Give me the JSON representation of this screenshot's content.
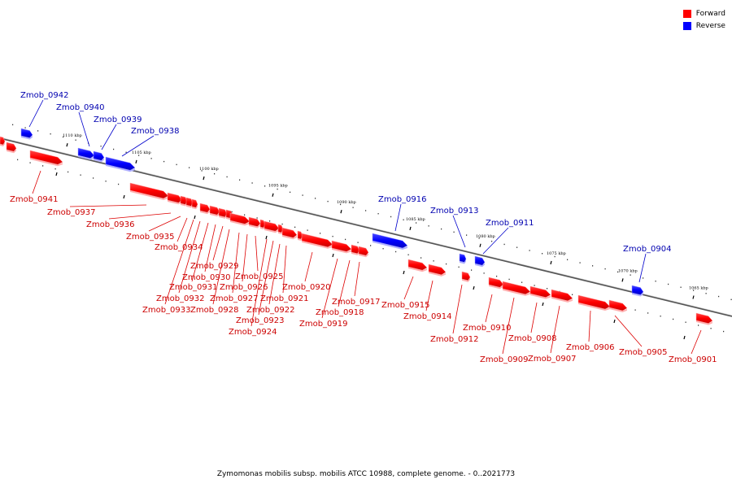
{
  "legend": {
    "forward_label": "Forward",
    "reverse_label": "Reverse",
    "forward_color": "#ff0000",
    "reverse_color": "#0000ff"
  },
  "caption": "Zymomonas mobilis subsp. mobilis ATCC 10988, complete genome. - 0..2021773",
  "genome_track": {
    "units": "kbp",
    "scale_labels": [
      "1110 kbp",
      "1105 kbp",
      "1100 kbp",
      "1095 kbp",
      "1090 kbp",
      "1085 kbp",
      "1080 kbp",
      "1075 kbp",
      "1070 kbp",
      "1065 kbp"
    ]
  },
  "genes": [
    {
      "name": "Zmob_0942",
      "strand": "reverse"
    },
    {
      "name": "Zmob_0941",
      "strand": "forward"
    },
    {
      "name": "Zmob_0940",
      "strand": "reverse"
    },
    {
      "name": "Zmob_0939",
      "strand": "reverse"
    },
    {
      "name": "Zmob_0938",
      "strand": "reverse"
    },
    {
      "name": "Zmob_0937",
      "strand": "forward"
    },
    {
      "name": "Zmob_0936",
      "strand": "forward"
    },
    {
      "name": "Zmob_0935",
      "strand": "forward"
    },
    {
      "name": "Zmob_0934",
      "strand": "forward"
    },
    {
      "name": "Zmob_0933",
      "strand": "forward"
    },
    {
      "name": "Zmob_0932",
      "strand": "forward"
    },
    {
      "name": "Zmob_0931",
      "strand": "forward"
    },
    {
      "name": "Zmob_0930",
      "strand": "forward"
    },
    {
      "name": "Zmob_0929",
      "strand": "forward"
    },
    {
      "name": "Zmob_0928",
      "strand": "forward"
    },
    {
      "name": "Zmob_0927",
      "strand": "forward"
    },
    {
      "name": "Zmob_0926",
      "strand": "forward"
    },
    {
      "name": "Zmob_0925",
      "strand": "forward"
    },
    {
      "name": "Zmob_0924",
      "strand": "forward"
    },
    {
      "name": "Zmob_0923",
      "strand": "forward"
    },
    {
      "name": "Zmob_0922",
      "strand": "forward"
    },
    {
      "name": "Zmob_0921",
      "strand": "forward"
    },
    {
      "name": "Zmob_0920",
      "strand": "forward"
    },
    {
      "name": "Zmob_0919",
      "strand": "forward"
    },
    {
      "name": "Zmob_0918",
      "strand": "forward"
    },
    {
      "name": "Zmob_0917",
      "strand": "forward"
    },
    {
      "name": "Zmob_0916",
      "strand": "reverse"
    },
    {
      "name": "Zmob_0915",
      "strand": "forward"
    },
    {
      "name": "Zmob_0914",
      "strand": "forward"
    },
    {
      "name": "Zmob_0913",
      "strand": "reverse"
    },
    {
      "name": "Zmob_0912",
      "strand": "forward"
    },
    {
      "name": "Zmob_0911",
      "strand": "reverse"
    },
    {
      "name": "Zmob_0910",
      "strand": "forward"
    },
    {
      "name": "Zmob_0909",
      "strand": "forward"
    },
    {
      "name": "Zmob_0908",
      "strand": "forward"
    },
    {
      "name": "Zmob_0907",
      "strand": "forward"
    },
    {
      "name": "Zmob_0906",
      "strand": "forward"
    },
    {
      "name": "Zmob_0905",
      "strand": "forward"
    },
    {
      "name": "Zmob_0904",
      "strand": "reverse"
    },
    {
      "name": "Zmob_0901",
      "strand": "forward"
    }
  ]
}
